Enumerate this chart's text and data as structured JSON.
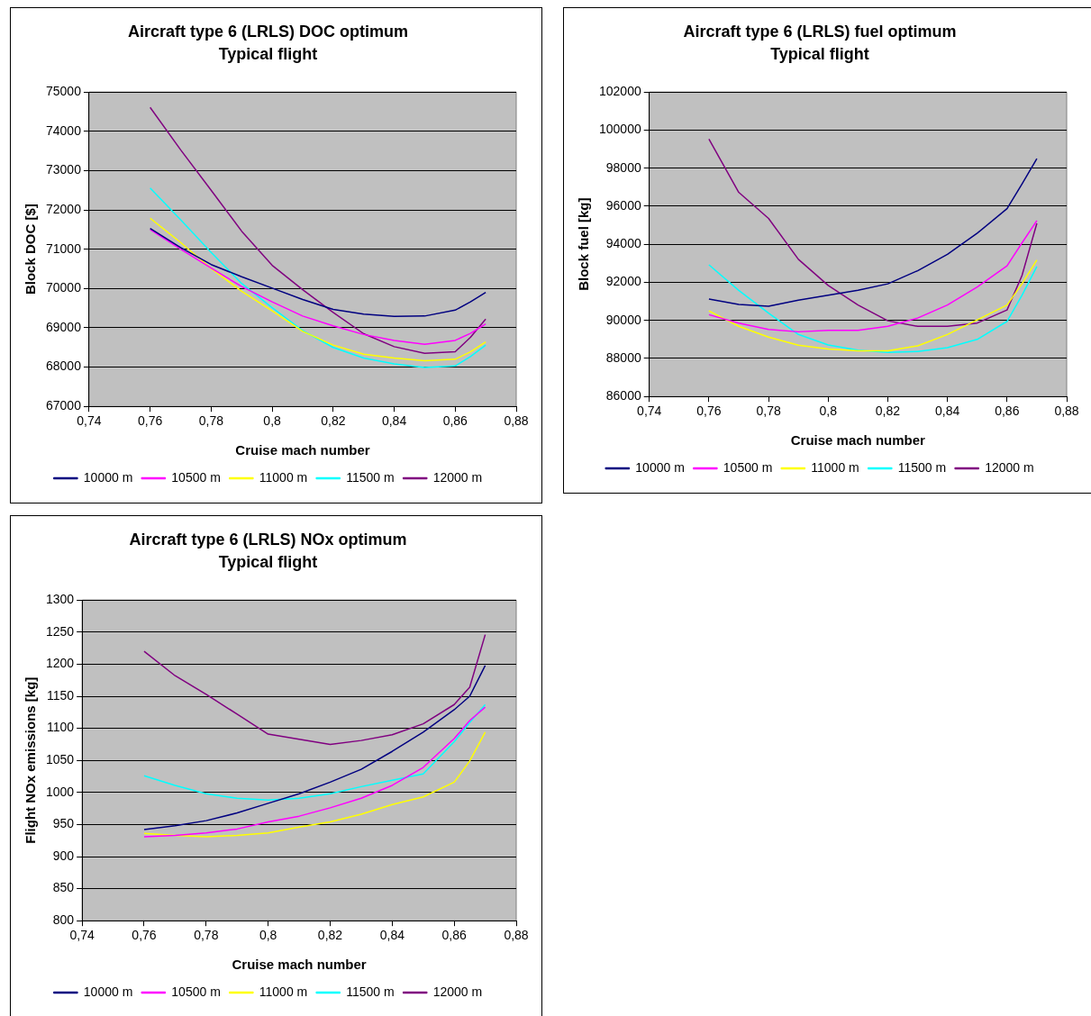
{
  "chart_data": [
    {
      "type": "line",
      "title": "Aircraft type 6 (LRLS) DOC optimum",
      "subtitle": "Typical flight",
      "xlabel": "Cruise mach number",
      "ylabel": "Block DOC [$]",
      "x": [
        0.76,
        0.77,
        0.78,
        0.79,
        0.8,
        0.81,
        0.82,
        0.83,
        0.84,
        0.85,
        0.86,
        0.865,
        0.87
      ],
      "xlim": [
        0.74,
        0.88
      ],
      "xticks": [
        {
          "value": 0.74,
          "label": "0,74"
        },
        {
          "value": 0.76,
          "label": "0,76"
        },
        {
          "value": 0.78,
          "label": "0,78"
        },
        {
          "value": 0.8,
          "label": "0,8"
        },
        {
          "value": 0.82,
          "label": "0,82"
        },
        {
          "value": 0.84,
          "label": "0,84"
        },
        {
          "value": 0.86,
          "label": "0,86"
        },
        {
          "value": 0.88,
          "label": "0,88"
        }
      ],
      "ylim": [
        67000,
        75000
      ],
      "yticks": [
        67000,
        68000,
        69000,
        70000,
        71000,
        72000,
        73000,
        74000,
        75000
      ],
      "grid": "y",
      "legend": "bottom",
      "marker": "none",
      "series": [
        {
          "name": "10000 m",
          "color": "#000080",
          "values": [
            71530,
            71040,
            70610,
            70300,
            70010,
            69720,
            69470,
            69350,
            69290,
            69300,
            69450,
            69660,
            69900
          ]
        },
        {
          "name": "10500 m",
          "color": "#ff00ff",
          "values": [
            71500,
            71000,
            70520,
            70050,
            69660,
            69300,
            69050,
            68830,
            68680,
            68580,
            68680,
            68860,
            69100
          ]
        },
        {
          "name": "11000 m",
          "color": "#ffff00",
          "values": [
            71790,
            71170,
            70510,
            69930,
            69430,
            68910,
            68560,
            68330,
            68230,
            68160,
            68200,
            68390,
            68640
          ]
        },
        {
          "name": "11500 m",
          "color": "#00ffff",
          "values": [
            72560,
            71750,
            70920,
            70130,
            69510,
            68930,
            68500,
            68230,
            68080,
            67990,
            68030,
            68270,
            68560
          ]
        },
        {
          "name": "12000 m",
          "color": "#800080",
          "values": [
            74610,
            73530,
            72500,
            71460,
            70590,
            69970,
            69390,
            68850,
            68520,
            68350,
            68390,
            68760,
            69220
          ]
        }
      ]
    },
    {
      "type": "line",
      "title": "Aircraft type 6 (LRLS) fuel optimum",
      "subtitle": "Typical flight",
      "xlabel": "Cruise mach number",
      "ylabel": "Block fuel [kg]",
      "x": [
        0.76,
        0.77,
        0.78,
        0.79,
        0.8,
        0.81,
        0.82,
        0.83,
        0.84,
        0.85,
        0.86,
        0.865,
        0.87
      ],
      "xlim": [
        0.74,
        0.88
      ],
      "xticks": [
        {
          "value": 0.74,
          "label": "0,74"
        },
        {
          "value": 0.76,
          "label": "0,76"
        },
        {
          "value": 0.78,
          "label": "0,78"
        },
        {
          "value": 0.8,
          "label": "0,8"
        },
        {
          "value": 0.82,
          "label": "0,82"
        },
        {
          "value": 0.84,
          "label": "0,84"
        },
        {
          "value": 0.86,
          "label": "0,86"
        },
        {
          "value": 0.88,
          "label": "0,88"
        }
      ],
      "ylim": [
        86000,
        102000
      ],
      "yticks": [
        86000,
        88000,
        90000,
        92000,
        94000,
        96000,
        98000,
        100000,
        102000
      ],
      "grid": "y",
      "legend": "bottom",
      "marker": "none",
      "series": [
        {
          "name": "10000 m",
          "color": "#000080",
          "values": [
            91120,
            90840,
            90740,
            91060,
            91320,
            91580,
            91920,
            92610,
            93470,
            94580,
            95870,
            97160,
            98500
          ]
        },
        {
          "name": "10500 m",
          "color": "#ff00ff",
          "values": [
            90300,
            89860,
            89520,
            89400,
            89480,
            89480,
            89690,
            90120,
            90810,
            91750,
            92870,
            94070,
            95240
          ]
        },
        {
          "name": "11000 m",
          "color": "#ffff00",
          "values": [
            90500,
            89690,
            89120,
            88700,
            88490,
            88400,
            88400,
            88660,
            89260,
            90030,
            90810,
            91920,
            93180
          ]
        },
        {
          "name": "11500 m",
          "color": "#00ffff",
          "values": [
            92920,
            91580,
            90380,
            89260,
            88710,
            88440,
            88320,
            88370,
            88570,
            89000,
            89950,
            91320,
            92830
          ]
        },
        {
          "name": "12000 m",
          "color": "#800080",
          "values": [
            99530,
            96730,
            95360,
            93210,
            91840,
            90810,
            89980,
            89690,
            89690,
            89860,
            90550,
            92350,
            95100
          ]
        }
      ]
    },
    {
      "type": "line",
      "title": "Aircraft type 6 (LRLS) NOx optimum",
      "subtitle": "Typical flight",
      "xlabel": "Cruise mach number",
      "ylabel": "Flight NOx emissions [kg]",
      "x": [
        0.76,
        0.77,
        0.78,
        0.79,
        0.8,
        0.81,
        0.82,
        0.83,
        0.84,
        0.85,
        0.86,
        0.865,
        0.87
      ],
      "xlim": [
        0.74,
        0.88
      ],
      "xticks": [
        {
          "value": 0.74,
          "label": "0,74"
        },
        {
          "value": 0.76,
          "label": "0,76"
        },
        {
          "value": 0.78,
          "label": "0,78"
        },
        {
          "value": 0.8,
          "label": "0,8"
        },
        {
          "value": 0.82,
          "label": "0,82"
        },
        {
          "value": 0.84,
          "label": "0,84"
        },
        {
          "value": 0.86,
          "label": "0,86"
        },
        {
          "value": 0.88,
          "label": "0,88"
        }
      ],
      "ylim": [
        800,
        1300
      ],
      "yticks": [
        800,
        850,
        900,
        950,
        1000,
        1050,
        1100,
        1150,
        1200,
        1250,
        1300
      ],
      "grid": "y",
      "legend": "bottom",
      "marker": "none",
      "series": [
        {
          "name": "10000 m",
          "color": "#000080",
          "values": [
            942,
            948,
            956,
            968,
            983,
            998,
            1016,
            1036,
            1064,
            1094,
            1129,
            1150,
            1198
          ]
        },
        {
          "name": "10500 m",
          "color": "#ff00ff",
          "values": [
            931,
            933,
            937,
            943,
            954,
            963,
            976,
            991,
            1011,
            1039,
            1084,
            1112,
            1133
          ]
        },
        {
          "name": "11000 m",
          "color": "#ffff00",
          "values": [
            936,
            933,
            931,
            933,
            937,
            946,
            954,
            966,
            981,
            993,
            1016,
            1049,
            1094
          ]
        },
        {
          "name": "11500 m",
          "color": "#00ffff",
          "values": [
            1026,
            1011,
            998,
            991,
            988,
            991,
            998,
            1009,
            1019,
            1029,
            1079,
            1109,
            1137
          ]
        },
        {
          "name": "12000 m",
          "color": "#800080",
          "values": [
            1220,
            1182,
            1153,
            1122,
            1091,
            1083,
            1075,
            1081,
            1090,
            1107,
            1137,
            1164,
            1246
          ]
        }
      ]
    }
  ]
}
